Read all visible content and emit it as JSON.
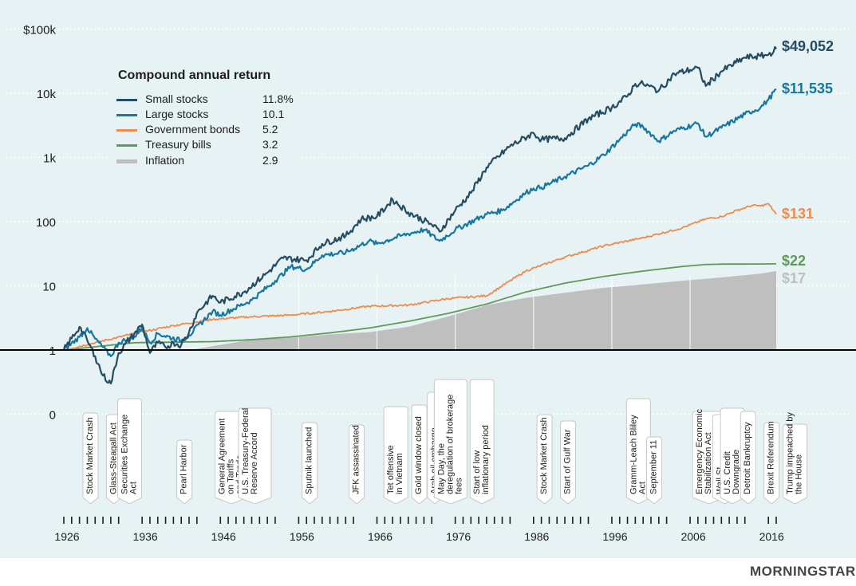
{
  "colors": {
    "background": "#e6f2f3",
    "small_stocks": "#244c63",
    "large_stocks": "#1677a0",
    "government_bonds": "#ef8c4c",
    "treasury_bills": "#5f9a59",
    "inflation": "#bfbfbf",
    "baseline": "#000000"
  },
  "legend": {
    "title": "Compound annual return",
    "items": [
      {
        "label": "Small stocks",
        "value": "11.8%",
        "color": "#244c63"
      },
      {
        "label": "Large stocks",
        "value": "10.1",
        "color": "#1677a0"
      },
      {
        "label": "Government bonds",
        "value": "5.2",
        "color": "#ef8c4c"
      },
      {
        "label": "Treasury bills",
        "value": "3.2",
        "color": "#5f9a59"
      },
      {
        "label": "Inflation",
        "value": "2.9",
        "color": "#bfbfbf"
      }
    ]
  },
  "chart_data": {
    "type": "line",
    "y_scale": "log",
    "y_ticks": [
      {
        "value": 0.1,
        "label": "0"
      },
      {
        "value": 1,
        "label": "1"
      },
      {
        "value": 10,
        "label": "10"
      },
      {
        "value": 100,
        "label": "100"
      },
      {
        "value": 1000,
        "label": "1k"
      },
      {
        "value": 10000,
        "label": "10k"
      },
      {
        "value": 100000,
        "label": "$100k"
      }
    ],
    "x_range": [
      1926,
      2017
    ],
    "x_ticks": [
      1926,
      1936,
      1946,
      1956,
      1966,
      1976,
      1986,
      1996,
      2006,
      2016
    ],
    "grid": true,
    "series": [
      {
        "name": "Small stocks",
        "end_label": "$49,052",
        "color": "#244c63",
        "points": [
          [
            1926,
            1
          ],
          [
            1928,
            2.3
          ],
          [
            1929,
            1.4
          ],
          [
            1930,
            0.8
          ],
          [
            1931,
            0.4
          ],
          [
            1932,
            0.3
          ],
          [
            1933,
            0.9
          ],
          [
            1935,
            1.8
          ],
          [
            1936,
            2.5
          ],
          [
            1937,
            0.9
          ],
          [
            1938,
            1.3
          ],
          [
            1939,
            1.1
          ],
          [
            1940,
            1.3
          ],
          [
            1941,
            1.2
          ],
          [
            1942,
            1.9
          ],
          [
            1943,
            3.8
          ],
          [
            1945,
            7
          ],
          [
            1946,
            5.5
          ],
          [
            1949,
            8
          ],
          [
            1952,
            16
          ],
          [
            1954,
            27
          ],
          [
            1957,
            25
          ],
          [
            1959,
            45
          ],
          [
            1962,
            60
          ],
          [
            1964,
            110
          ],
          [
            1966,
            120
          ],
          [
            1968,
            220
          ],
          [
            1970,
            140
          ],
          [
            1973,
            90
          ],
          [
            1974,
            70
          ],
          [
            1976,
            150
          ],
          [
            1978,
            280
          ],
          [
            1980,
            700
          ],
          [
            1983,
            1500
          ],
          [
            1986,
            2400
          ],
          [
            1987,
            1900
          ],
          [
            1990,
            2000
          ],
          [
            1993,
            4000
          ],
          [
            1996,
            6000
          ],
          [
            1998,
            9000
          ],
          [
            1999,
            14000
          ],
          [
            2000,
            14000
          ],
          [
            2002,
            11000
          ],
          [
            2004,
            20000
          ],
          [
            2007,
            25000
          ],
          [
            2008,
            13000
          ],
          [
            2010,
            22000
          ],
          [
            2013,
            36000
          ],
          [
            2015,
            38000
          ],
          [
            2016,
            40000
          ],
          [
            2017,
            49052
          ]
        ]
      },
      {
        "name": "Large stocks",
        "end_label": "$11,535",
        "color": "#1677a0",
        "points": [
          [
            1926,
            1
          ],
          [
            1928,
            1.6
          ],
          [
            1929,
            2.2
          ],
          [
            1930,
            1.5
          ],
          [
            1932,
            0.8
          ],
          [
            1933,
            1.3
          ],
          [
            1935,
            1.6
          ],
          [
            1936,
            2.2
          ],
          [
            1937,
            1.3
          ],
          [
            1938,
            1.8
          ],
          [
            1941,
            1.4
          ],
          [
            1942,
            1.7
          ],
          [
            1945,
            4
          ],
          [
            1946,
            3.5
          ],
          [
            1950,
            6
          ],
          [
            1953,
            12
          ],
          [
            1955,
            20
          ],
          [
            1957,
            18
          ],
          [
            1959,
            30
          ],
          [
            1962,
            33
          ],
          [
            1965,
            50
          ],
          [
            1966,
            45
          ],
          [
            1969,
            60
          ],
          [
            1972,
            75
          ],
          [
            1974,
            50
          ],
          [
            1976,
            75
          ],
          [
            1980,
            130
          ],
          [
            1982,
            150
          ],
          [
            1985,
            280
          ],
          [
            1986,
            330
          ],
          [
            1987,
            340
          ],
          [
            1990,
            500
          ],
          [
            1993,
            750
          ],
          [
            1995,
            1100
          ],
          [
            1997,
            1900
          ],
          [
            1999,
            3300
          ],
          [
            2000,
            3000
          ],
          [
            2002,
            1800
          ],
          [
            2004,
            2600
          ],
          [
            2007,
            3400
          ],
          [
            2008,
            2100
          ],
          [
            2010,
            2900
          ],
          [
            2013,
            4700
          ],
          [
            2015,
            6000
          ],
          [
            2016,
            8000
          ],
          [
            2017,
            11535
          ]
        ]
      },
      {
        "name": "Government bonds",
        "end_label": "$131",
        "color": "#ef8c4c",
        "points": [
          [
            1926,
            1
          ],
          [
            1930,
            1.3
          ],
          [
            1935,
            1.8
          ],
          [
            1940,
            2.4
          ],
          [
            1945,
            3
          ],
          [
            1950,
            3.3
          ],
          [
            1955,
            3.5
          ],
          [
            1960,
            4
          ],
          [
            1965,
            4.8
          ],
          [
            1970,
            5
          ],
          [
            1975,
            6.3
          ],
          [
            1980,
            7
          ],
          [
            1982,
            10
          ],
          [
            1985,
            17
          ],
          [
            1990,
            28
          ],
          [
            1995,
            42
          ],
          [
            2000,
            56
          ],
          [
            2005,
            80
          ],
          [
            2008,
            110
          ],
          [
            2010,
            120
          ],
          [
            2012,
            150
          ],
          [
            2014,
            180
          ],
          [
            2015,
            175
          ],
          [
            2016,
            190
          ],
          [
            2017,
            131
          ]
        ]
      },
      {
        "name": "Treasury bills",
        "end_label": "$22",
        "color": "#5f9a59",
        "points": [
          [
            1926,
            1
          ],
          [
            1935,
            1.3
          ],
          [
            1945,
            1.35
          ],
          [
            1950,
            1.45
          ],
          [
            1955,
            1.6
          ],
          [
            1960,
            1.85
          ],
          [
            1965,
            2.2
          ],
          [
            1970,
            2.8
          ],
          [
            1975,
            3.7
          ],
          [
            1980,
            5.2
          ],
          [
            1985,
            8
          ],
          [
            1990,
            11
          ],
          [
            1995,
            14
          ],
          [
            2000,
            17
          ],
          [
            2005,
            20
          ],
          [
            2008,
            21.5
          ],
          [
            2010,
            21.8
          ],
          [
            2015,
            21.9
          ],
          [
            2017,
            22
          ]
        ]
      },
      {
        "name": "Inflation",
        "end_label": "$17",
        "color": "#bfbfbf",
        "points": [
          [
            1926,
            1
          ],
          [
            1932,
            0.75
          ],
          [
            1935,
            0.8
          ],
          [
            1940,
            0.83
          ],
          [
            1942,
            0.95
          ],
          [
            1946,
            1.2
          ],
          [
            1950,
            1.45
          ],
          [
            1955,
            1.55
          ],
          [
            1960,
            1.75
          ],
          [
            1965,
            1.9
          ],
          [
            1970,
            2.3
          ],
          [
            1975,
            3.3
          ],
          [
            1980,
            5
          ],
          [
            1985,
            6.5
          ],
          [
            1990,
            7.8
          ],
          [
            1995,
            9.3
          ],
          [
            2000,
            10.5
          ],
          [
            2005,
            12
          ],
          [
            2010,
            13.5
          ],
          [
            2015,
            15.5
          ],
          [
            2017,
            17
          ]
        ]
      }
    ],
    "events": [
      {
        "year": 1929,
        "label": "Stock Market Crash"
      },
      {
        "year": 1932,
        "label": "Glass-Steagall Act"
      },
      {
        "year": 1934,
        "label": "Securities Exchange Act"
      },
      {
        "year": 1941,
        "label": "Pearl Harbor"
      },
      {
        "year": 1947,
        "label": "General Agreement on Tariffs and Trade"
      },
      {
        "year": 1950,
        "label": "U.S. Treasury-Federal Reserve Accord"
      },
      {
        "year": 1957,
        "label": "Sputnik launched"
      },
      {
        "year": 1963,
        "label": "JFK assassinated"
      },
      {
        "year": 1968,
        "label": "Tet offensive in Vietnam"
      },
      {
        "year": 1971,
        "label": "Gold window closed"
      },
      {
        "year": 1973,
        "label": "Arab oil embargo"
      },
      {
        "year": 1975,
        "label": "May Day, the deregulation of brokerage fees"
      },
      {
        "year": 1979,
        "label": "Start of low inflationary period"
      },
      {
        "year": 1987,
        "label": "Stock Market Crash"
      },
      {
        "year": 1990,
        "label": "Start of Gulf War"
      },
      {
        "year": 1999,
        "label": "Gramm-Leach Bliley Act"
      },
      {
        "year": 2001,
        "label": "September 11"
      },
      {
        "year": 2008,
        "label": "Emergency Economic Stabilization Act"
      },
      {
        "year": 2010,
        "label": "Wall St. Reform Act"
      },
      {
        "year": 2011,
        "label": "U.S. Credit Downgrade"
      },
      {
        "year": 2013,
        "label": "Detroit Bankruptcy"
      },
      {
        "year": 2016,
        "label": "Brexit Referendum"
      },
      {
        "year": 2019,
        "label": "Trump impeached by the House"
      }
    ]
  },
  "logo": {
    "text": "MORNINGSTAR",
    "mark": "®"
  }
}
